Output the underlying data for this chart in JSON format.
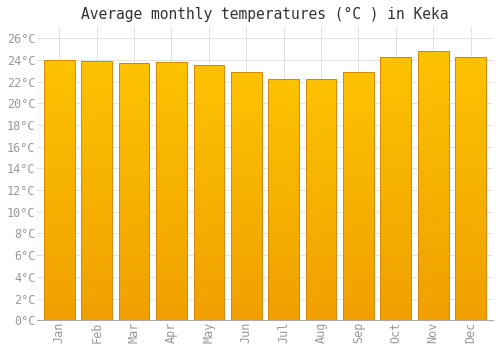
{
  "title": "Average monthly temperatures (°C ) in Keka",
  "months": [
    "Jan",
    "Feb",
    "Mar",
    "Apr",
    "May",
    "Jun",
    "Jul",
    "Aug",
    "Sep",
    "Oct",
    "Nov",
    "Dec"
  ],
  "values": [
    24.0,
    23.9,
    23.7,
    23.8,
    23.5,
    22.9,
    22.2,
    22.2,
    22.9,
    24.3,
    24.8,
    24.3
  ],
  "bar_color_top": "#FCC200",
  "bar_color_bottom": "#F0A000",
  "bar_edge_color": "#D4880A",
  "background_color": "#FFFFFF",
  "grid_color": "#DDDDDD",
  "ylim": [
    0,
    27
  ],
  "ytick_step": 2,
  "title_fontsize": 10.5,
  "tick_fontsize": 8.5,
  "font_family": "monospace",
  "tick_color": "#999999",
  "title_color": "#333333"
}
